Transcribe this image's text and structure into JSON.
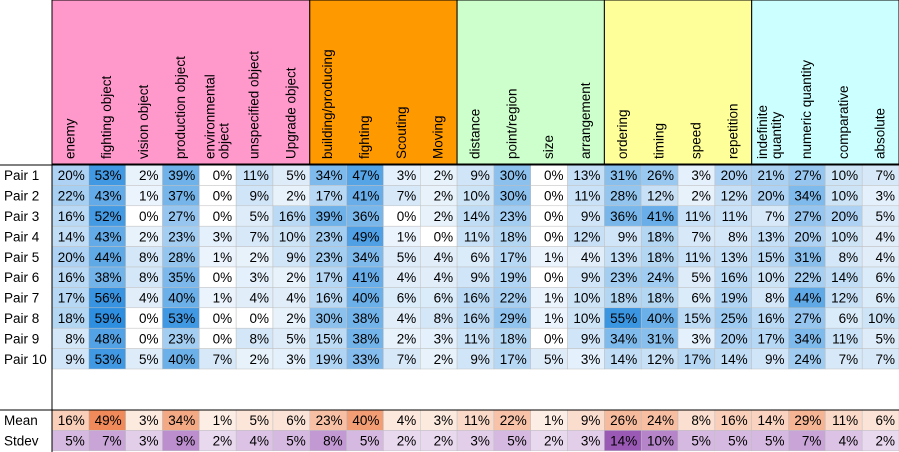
{
  "chart_data": {
    "type": "heatmap",
    "groups": [
      {
        "start": 0,
        "end": 6,
        "color": "#ff99cc"
      },
      {
        "start": 7,
        "end": 10,
        "color": "#ff9900"
      },
      {
        "start": 11,
        "end": 14,
        "color": "#ccffcc"
      },
      {
        "start": 15,
        "end": 18,
        "color": "#ffff99"
      },
      {
        "start": 19,
        "end": 22,
        "color": "#ccffff"
      }
    ],
    "columns": [
      "enemy",
      "fighting object",
      "vision object",
      "production object",
      "environmental object",
      "unspecified object",
      "Upgrade object",
      "building/producing",
      "fighting",
      "Scouting",
      "Moving",
      "distance",
      "point/region",
      "size",
      "arrangement",
      "ordering",
      "timing",
      "speed",
      "repetition",
      "indefinite quantity",
      "numeric quantity",
      "comparative",
      "absolute"
    ],
    "rows": [
      {
        "label": "Pair 1",
        "values": [
          20,
          53,
          2,
          39,
          0,
          11,
          5,
          34,
          47,
          3,
          2,
          9,
          30,
          0,
          13,
          31,
          26,
          3,
          20,
          21,
          27,
          10,
          7
        ]
      },
      {
        "label": "Pair 2",
        "values": [
          22,
          43,
          1,
          37,
          0,
          9,
          2,
          17,
          41,
          7,
          2,
          10,
          30,
          0,
          11,
          28,
          12,
          2,
          12,
          20,
          34,
          10,
          3
        ]
      },
      {
        "label": "Pair 3",
        "values": [
          16,
          52,
          0,
          27,
          0,
          5,
          16,
          39,
          36,
          0,
          2,
          14,
          23,
          0,
          9,
          36,
          41,
          11,
          11,
          7,
          27,
          20,
          5
        ]
      },
      {
        "label": "Pair 4",
        "values": [
          14,
          43,
          2,
          23,
          3,
          7,
          10,
          23,
          49,
          1,
          0,
          11,
          18,
          0,
          12,
          9,
          18,
          7,
          8,
          13,
          20,
          10,
          4
        ]
      },
      {
        "label": "Pair 5",
        "values": [
          20,
          44,
          8,
          28,
          1,
          2,
          9,
          23,
          34,
          5,
          4,
          6,
          17,
          1,
          4,
          13,
          18,
          11,
          13,
          15,
          31,
          8,
          4
        ]
      },
      {
        "label": "Pair 6",
        "values": [
          16,
          38,
          8,
          35,
          0,
          3,
          2,
          17,
          41,
          4,
          4,
          9,
          19,
          0,
          9,
          23,
          24,
          5,
          16,
          10,
          22,
          14,
          6
        ]
      },
      {
        "label": "Pair 7",
        "values": [
          17,
          56,
          4,
          40,
          1,
          4,
          4,
          16,
          40,
          6,
          6,
          16,
          22,
          1,
          10,
          18,
          18,
          6,
          19,
          8,
          44,
          12,
          6
        ]
      },
      {
        "label": "Pair 8",
        "values": [
          18,
          59,
          0,
          53,
          0,
          0,
          2,
          30,
          38,
          4,
          8,
          16,
          29,
          1,
          10,
          55,
          40,
          15,
          25,
          16,
          27,
          6,
          10
        ]
      },
      {
        "label": "Pair 9",
        "values": [
          8,
          48,
          0,
          23,
          0,
          8,
          5,
          15,
          38,
          2,
          3,
          11,
          18,
          0,
          9,
          34,
          31,
          3,
          20,
          17,
          34,
          11,
          5
        ]
      },
      {
        "label": "Pair 10",
        "values": [
          9,
          53,
          5,
          40,
          7,
          2,
          3,
          19,
          33,
          7,
          2,
          9,
          17,
          5,
          3,
          14,
          12,
          17,
          14,
          9,
          24,
          7,
          7
        ]
      }
    ],
    "summary": [
      {
        "label": "Mean",
        "values": [
          16,
          49,
          3,
          34,
          1,
          5,
          6,
          23,
          40,
          4,
          3,
          11,
          22,
          1,
          9,
          26,
          24,
          8,
          16,
          14,
          29,
          11,
          6
        ]
      },
      {
        "label": "Stdev",
        "values": [
          5,
          7,
          3,
          9,
          2,
          4,
          5,
          8,
          5,
          2,
          2,
          3,
          5,
          2,
          3,
          14,
          10,
          5,
          5,
          5,
          7,
          4,
          2
        ]
      }
    ],
    "value_suffix": "%",
    "colors": {
      "cell_scale_light": "#eef5fc",
      "cell_scale_dark": "#2e8fe0",
      "mean_scale_light": "#fdf0e8",
      "mean_scale_dark": "#f08a5a",
      "stdev_scale_light": "#f6eef8",
      "stdev_scale_dark": "#9b59b6",
      "gridline": "#bfbfbf"
    }
  }
}
